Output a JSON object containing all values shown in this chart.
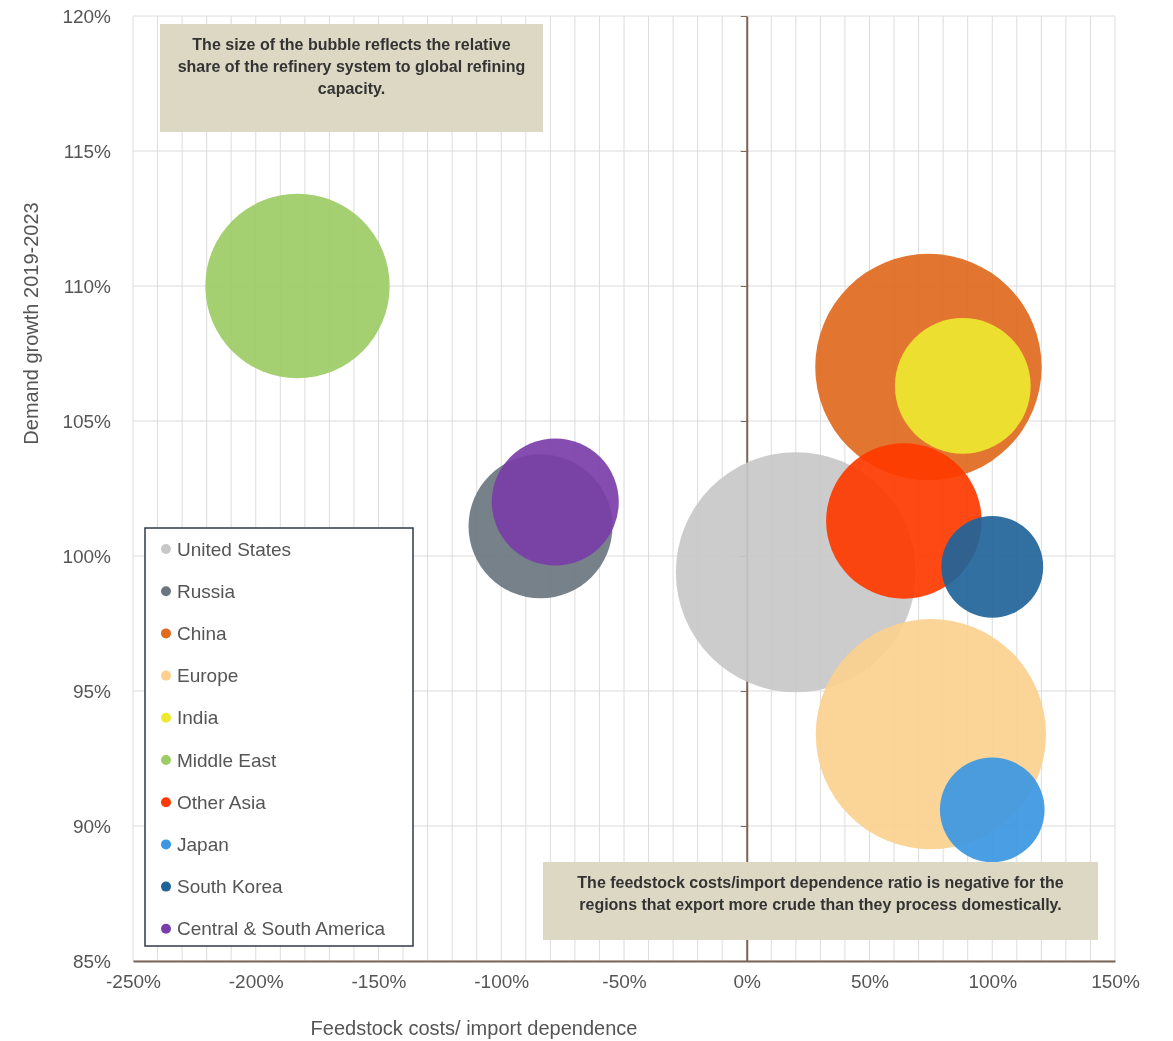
{
  "chart_data": {
    "type": "bubble",
    "xlabel": "Feedstock costs/ import dependence",
    "ylabel": "Demand growth 2019-2023",
    "annotations": [
      "The size of the bubble reflects the relative share of the refinery system to global refining capacity.",
      "The feedstock costs/import dependence ratio is negative for the regions that export more crude than they process domestically."
    ],
    "xlim": [
      -250,
      150
    ],
    "ylim": [
      85,
      120
    ],
    "xticks": [
      {
        "value": -250,
        "label": "-250%"
      },
      {
        "value": -240,
        "label": null
      },
      {
        "value": -230,
        "label": null
      },
      {
        "value": -220,
        "label": null
      },
      {
        "value": -210,
        "label": null
      },
      {
        "value": -200,
        "label": "-200%"
      },
      {
        "value": -190,
        "label": null
      },
      {
        "value": -180,
        "label": null
      },
      {
        "value": -170,
        "label": null
      },
      {
        "value": -160,
        "label": null
      },
      {
        "value": -150,
        "label": "-150%"
      },
      {
        "value": -140,
        "label": null
      },
      {
        "value": -130,
        "label": null
      },
      {
        "value": -120,
        "label": null
      },
      {
        "value": -110,
        "label": null
      },
      {
        "value": -100,
        "label": "-100%"
      },
      {
        "value": -90,
        "label": null
      },
      {
        "value": -80,
        "label": null
      },
      {
        "value": -70,
        "label": null
      },
      {
        "value": -60,
        "label": null
      },
      {
        "value": -50,
        "label": "-50%"
      },
      {
        "value": -40,
        "label": null
      },
      {
        "value": -30,
        "label": null
      },
      {
        "value": -20,
        "label": null
      },
      {
        "value": -10,
        "label": null
      },
      {
        "value": 0,
        "label": "0%"
      },
      {
        "value": 10,
        "label": null
      },
      {
        "value": 20,
        "label": null
      },
      {
        "value": 30,
        "label": null
      },
      {
        "value": 40,
        "label": null
      },
      {
        "value": 50,
        "label": "50%"
      },
      {
        "value": 60,
        "label": null
      },
      {
        "value": 70,
        "label": null
      },
      {
        "value": 80,
        "label": null
      },
      {
        "value": 90,
        "label": null
      },
      {
        "value": 100,
        "label": "100%"
      },
      {
        "value": 110,
        "label": null
      },
      {
        "value": 120,
        "label": null
      },
      {
        "value": 130,
        "label": null
      },
      {
        "value": 140,
        "label": null
      },
      {
        "value": 150,
        "label": "150%"
      }
    ],
    "yticks": [
      {
        "value": 85,
        "label": "85%"
      },
      {
        "value": 90,
        "label": "90%"
      },
      {
        "value": 95,
        "label": "95%"
      },
      {
        "value": 100,
        "label": "100%"
      },
      {
        "value": 105,
        "label": "105%"
      },
      {
        "value": 110,
        "label": "110%"
      },
      {
        "value": 115,
        "label": "115%"
      },
      {
        "value": 120,
        "label": "120%"
      }
    ],
    "grid": true,
    "legend": "bottom left",
    "series": [
      {
        "name": "United States",
        "color": "#c8c8c8",
        "x": [
          20
        ],
        "values": [
          99.4
        ],
        "sizes": [
          1
        ]
      },
      {
        "name": "Russia",
        "color": "#6b7680",
        "x": [
          -84
        ],
        "values": [
          101.1
        ],
        "sizes": [
          0.36
        ]
      },
      {
        "name": "China",
        "color": "#e06a1e",
        "x": [
          74
        ],
        "values": [
          107
        ],
        "sizes": [
          0.89
        ]
      },
      {
        "name": "Europe",
        "color": "#fbd08e",
        "x": [
          75
        ],
        "values": [
          93.4
        ],
        "sizes": [
          0.92
        ]
      },
      {
        "name": "India",
        "color": "#eee830",
        "x": [
          88
        ],
        "values": [
          106.3
        ],
        "sizes": [
          0.32
        ]
      },
      {
        "name": "Middle East",
        "color": "#9ccc65",
        "x": [
          -183
        ],
        "values": [
          110
        ],
        "sizes": [
          0.59
        ]
      },
      {
        "name": "Other Asia",
        "color": "#ff3a00",
        "x": [
          64
        ],
        "values": [
          101.3
        ],
        "sizes": [
          0.42
        ]
      },
      {
        "name": "Japan",
        "color": "#3b97e2",
        "x": [
          100
        ],
        "values": [
          90.6
        ],
        "sizes": [
          0.19
        ]
      },
      {
        "name": "South Korea",
        "color": "#1f6499",
        "x": [
          100
        ],
        "values": [
          99.6
        ],
        "sizes": [
          0.18
        ]
      },
      {
        "name": "Central & South America",
        "color": "#7a3ea8",
        "x": [
          -78
        ],
        "values": [
          102
        ],
        "sizes": [
          0.28
        ]
      }
    ]
  }
}
